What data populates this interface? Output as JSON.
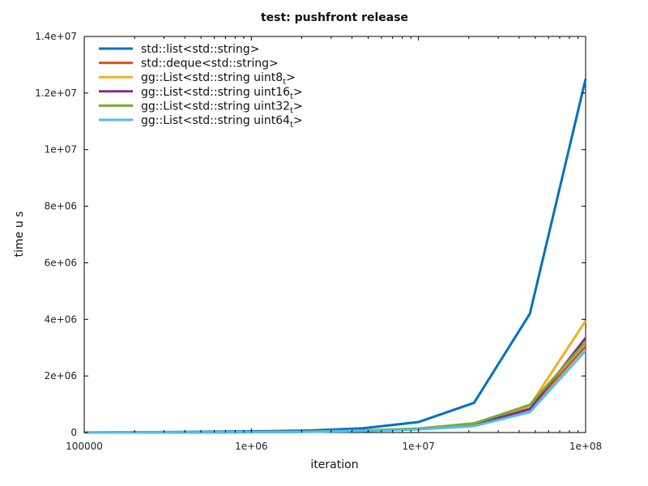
{
  "chart_data": {
    "type": "line",
    "title": "test: pushfront release",
    "xlabel": "iteration",
    "ylabel": "time u s",
    "x_scale": "log",
    "xlim": [
      100000,
      100000000
    ],
    "ylim": [
      0,
      14000000
    ],
    "x_ticks": [
      100000,
      1000000,
      10000000,
      100000000
    ],
    "x_tick_labels": [
      "100000",
      "1e+06",
      "1e+07",
      "1e+08"
    ],
    "y_ticks": [
      0,
      2000000,
      4000000,
      6000000,
      8000000,
      10000000,
      12000000,
      14000000
    ],
    "y_tick_labels": [
      "0",
      "2e+06",
      "4e+06",
      "6e+06",
      "8e+06",
      "1e+07",
      "1.2e+07",
      "1.4e+07"
    ],
    "grid": false,
    "legend_position": "top-left",
    "x": [
      100000,
      215000,
      464000,
      1000000,
      2150000,
      4640000,
      10000000,
      21500000,
      46400000,
      100000000
    ],
    "series": [
      {
        "name": "std::list<std::string>",
        "color": "#0072bd",
        "values": [
          5000,
          12000,
          25000,
          40000,
          70000,
          150000,
          370000,
          1050000,
          4200000,
          12500000
        ]
      },
      {
        "name": "std::deque<std::string>",
        "color": "#d95319",
        "values": [
          1000,
          3000,
          7000,
          15000,
          30000,
          65000,
          130000,
          300000,
          850000,
          3050000
        ]
      },
      {
        "name": "gg::List<std::string uint8",
        "sub": "t",
        "suffix": ">",
        "color": "#edb120",
        "values": [
          1000,
          3000,
          7000,
          15000,
          30000,
          70000,
          140000,
          330000,
          950000,
          3950000
        ]
      },
      {
        "name": "gg::List<std::string uint16",
        "sub": "t",
        "suffix": ">",
        "color": "#7e2f8e",
        "values": [
          1000,
          3000,
          7000,
          15000,
          30000,
          65000,
          130000,
          290000,
          820000,
          3350000
        ]
      },
      {
        "name": "gg::List<std::string uint32",
        "sub": "t",
        "suffix": ">",
        "color": "#77ac30",
        "values": [
          1000,
          3000,
          7000,
          15000,
          30000,
          70000,
          140000,
          320000,
          980000,
          3200000
        ]
      },
      {
        "name": "gg::List<std::string uint64",
        "sub": "t",
        "suffix": ">",
        "color": "#4dbeee",
        "values": [
          1000,
          2500,
          6000,
          12000,
          25000,
          55000,
          110000,
          230000,
          720000,
          2900000
        ]
      }
    ]
  }
}
